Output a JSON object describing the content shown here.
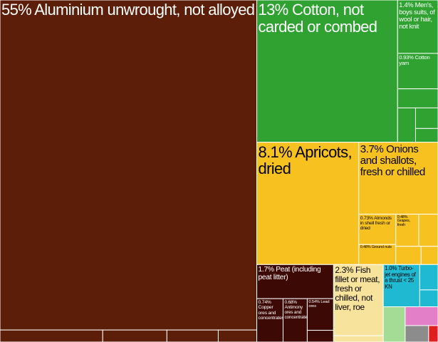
{
  "chart_data": {
    "type": "treemap",
    "groups": [
      {
        "color": "#5c1e08",
        "items": [
          {
            "label": "55% Aluminium unwrought, not alloyed",
            "value": 55
          },
          {
            "label": null,
            "value": 0.8
          },
          {
            "label": null,
            "value": 0.5
          },
          {
            "label": null,
            "value": 0.4
          },
          {
            "label": null,
            "value": 0.3
          }
        ]
      },
      {
        "color": "#2fa232",
        "items": [
          {
            "label": "13% Cotton, not carded or combed",
            "value": 13
          },
          {
            "label": "1.4% Men's, boys suits, of wool or hair, not knit",
            "value": 1.4
          },
          {
            "label": "0.93% Cotton yarn",
            "value": 0.93
          },
          {
            "label": null,
            "value": 0.5
          },
          {
            "label": null,
            "value": 0.4
          },
          {
            "label": null,
            "value": 0.3
          },
          {
            "label": null,
            "value": 0.2
          }
        ]
      },
      {
        "color": "#f7c21f",
        "items": [
          {
            "label": "8.1% Apricots, dried",
            "value": 8.1
          },
          {
            "label": "3.7% Onions and shallots, fresh or chilled",
            "value": 3.7
          },
          {
            "label": "0.73% Almonds in shell fresh or dried",
            "value": 0.73
          },
          {
            "label": "0.48% Ground nuts",
            "value": 0.48
          },
          {
            "label": "0.48% Grapes, fresh",
            "value": 0.48
          },
          {
            "label": null,
            "value": 0.4
          },
          {
            "label": null,
            "value": 0.3
          },
          {
            "label": null,
            "value": 0.2
          }
        ]
      },
      {
        "color": "#3d0905",
        "items": [
          {
            "label": "1.7% Peat (including peat litter)",
            "value": 1.7
          },
          {
            "label": "0.74% Copper ores and concentrates",
            "value": 0.74
          },
          {
            "label": "0.68% Antimony ores and concentrates",
            "value": 0.68
          },
          {
            "label": "0.54% Lead ores",
            "value": 0.54
          },
          {
            "label": null,
            "value": 0.2
          }
        ]
      },
      {
        "color": "#f8e39c",
        "items": [
          {
            "label": "2.3% Fish fillet or meat, fresh or chilled, not liver, roe",
            "value": 2.3
          },
          {
            "label": null,
            "value": 0.2
          }
        ]
      },
      {
        "color": "#1fbad2",
        "items": [
          {
            "label": "1.0% Turbo-jet engines of a thrust < 25 KN",
            "value": 1.0
          },
          {
            "label": null,
            "value": 0.3
          },
          {
            "label": null,
            "value": 0.2
          }
        ]
      },
      {
        "color": "#a4dc96",
        "items": [
          {
            "label": null,
            "value": 0.5
          }
        ]
      },
      {
        "color": "#e27fc8",
        "items": [
          {
            "label": null,
            "value": 0.4
          }
        ]
      },
      {
        "color": "#8c8c8c",
        "items": [
          {
            "label": null,
            "value": 0.25
          }
        ]
      },
      {
        "color": "#e02020",
        "items": [
          {
            "label": null,
            "value": 0.1
          }
        ]
      }
    ]
  }
}
